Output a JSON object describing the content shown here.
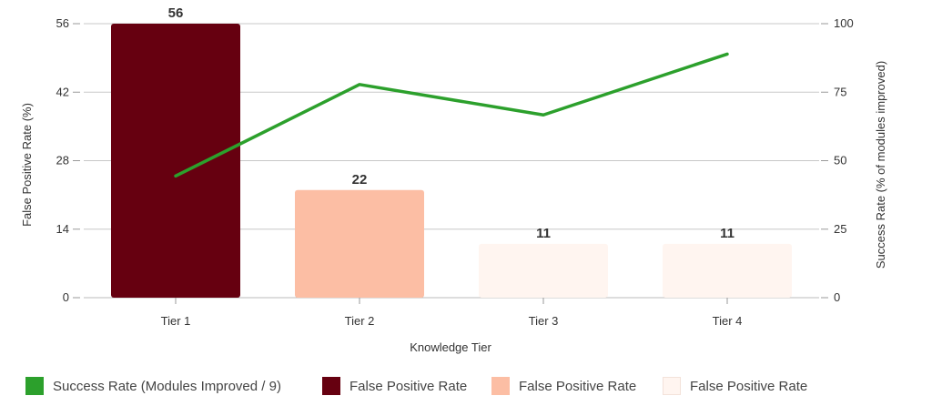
{
  "chart_data": {
    "type": "bar",
    "categories": [
      "Tier 1",
      "Tier 2",
      "Tier 3",
      "Tier 4"
    ],
    "xlabel": "Knowledge Tier",
    "ylabel_left": "False Positive Rate (%)",
    "ylabel_right": "Success Rate (% of modules improved)",
    "ylim_left": [
      0,
      56
    ],
    "ylim_right": [
      0,
      100
    ],
    "left_ticks": [
      "0",
      "14",
      "28",
      "42",
      "56"
    ],
    "right_ticks": [
      "0",
      "25",
      "50",
      "75",
      "100"
    ],
    "grid": true,
    "legend_position": "bottom",
    "bar_values": [
      56,
      22,
      11,
      11
    ],
    "bar_labels": [
      "56",
      "22",
      "11",
      "11"
    ],
    "bar_colors": [
      "#660010",
      "#fcbea4",
      "#fff5f0",
      "#fff5f0"
    ],
    "line_series": {
      "name": "Success Rate (Modules Improved / 9)",
      "values": [
        44.4,
        77.8,
        66.7,
        88.9
      ],
      "color": "#2ca02c"
    },
    "legend": [
      {
        "label": "Success Rate (Modules Improved / 9)",
        "color": "#2ca02c"
      },
      {
        "label": "False Positive Rate",
        "color": "#660010"
      },
      {
        "label": "False Positive Rate",
        "color": "#fcbea4"
      },
      {
        "label": "False Positive Rate",
        "color": "#fff5f0"
      }
    ]
  }
}
